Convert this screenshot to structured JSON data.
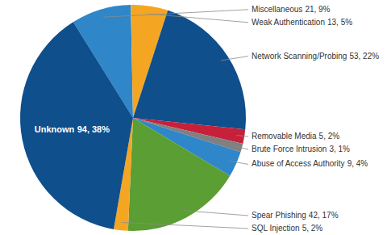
{
  "chart_data": {
    "type": "pie",
    "categories": [
      "Miscellaneous",
      "Weak Authentication",
      "Network Scanning/Probing",
      "Removable Media",
      "Brute Force Intrusion",
      "Abuse of Access Authority",
      "Spear Phishing",
      "SQL Injection",
      "Unknown"
    ],
    "values": [
      21,
      13,
      53,
      5,
      3,
      9,
      42,
      5,
      94
    ],
    "value_labels": [
      "21, 9%",
      "13, 5%",
      "53, 22%",
      "5, 2%",
      "3, 1%",
      "9, 4%",
      "42, 17%",
      "5, 2%",
      "94, 38%"
    ],
    "colors": [
      "#2f86c8",
      "#f4a623",
      "#0e4f8c",
      "#c7203a",
      "#808080",
      "#2f86c8",
      "#5b9e33",
      "#f4a623",
      "#0e4f8c"
    ],
    "data_labels": true
  }
}
